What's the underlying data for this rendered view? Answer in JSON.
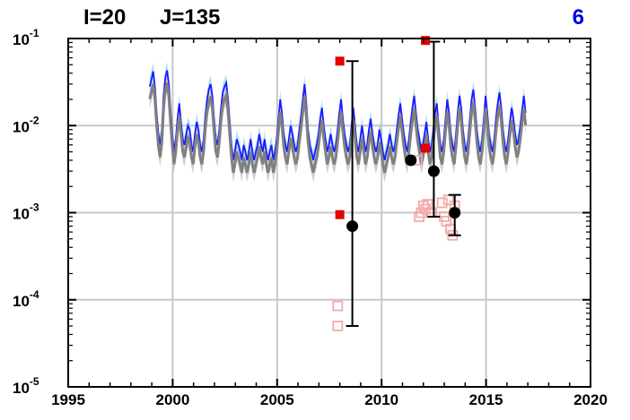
{
  "chart_data": {
    "type": "line",
    "title_left": "I=20",
    "title_mid": "J=135",
    "title_right": "6",
    "xlim": [
      1995,
      2020
    ],
    "ylim": [
      1e-05,
      0.1
    ],
    "yscale": "log",
    "grid": true,
    "x_ticks": [
      "1995",
      "2000",
      "2005",
      "2010",
      "2015",
      "2020"
    ],
    "y_ticks": [
      {
        "base": "10",
        "exp": "-5",
        "value": 1e-05
      },
      {
        "base": "10",
        "exp": "-4",
        "value": 0.0001
      },
      {
        "base": "10",
        "exp": "-3",
        "value": 0.001
      },
      {
        "base": "10",
        "exp": "-2",
        "value": 0.01
      },
      {
        "base": "10",
        "exp": "-1",
        "value": 0.1
      }
    ],
    "colors": {
      "blue_line": "#1a1aff",
      "light_band": "#9ad7f5",
      "gray_line": "#808080",
      "red_square": "#e60000",
      "pink_square": "#f4aaaa",
      "black_dot": "#000000",
      "grid": "#c8c8c8",
      "title_right": "#0000e0"
    },
    "series_monthly_x_start": 1998.9,
    "series_monthly_x_step": 0.0833,
    "series_blue": [
      0.028,
      0.034,
      0.042,
      0.028,
      0.014,
      0.008,
      0.006,
      0.009,
      0.022,
      0.036,
      0.043,
      0.03,
      0.015,
      0.008,
      0.005,
      0.007,
      0.012,
      0.018,
      0.011,
      0.007,
      0.006,
      0.008,
      0.01,
      0.009,
      0.006,
      0.005,
      0.008,
      0.011,
      0.009,
      0.006,
      0.005,
      0.007,
      0.013,
      0.02,
      0.026,
      0.03,
      0.022,
      0.012,
      0.007,
      0.006,
      0.009,
      0.016,
      0.024,
      0.028,
      0.031,
      0.02,
      0.011,
      0.006,
      0.004,
      0.005,
      0.007,
      0.006,
      0.005,
      0.004,
      0.006,
      0.005,
      0.004,
      0.005,
      0.007,
      0.005,
      0.004,
      0.005,
      0.006,
      0.008,
      0.006,
      0.005,
      0.007,
      0.005,
      0.004,
      0.005,
      0.006,
      0.004,
      0.005,
      0.007,
      0.012,
      0.02,
      0.014,
      0.008,
      0.006,
      0.005,
      0.007,
      0.01,
      0.008,
      0.006,
      0.005,
      0.006,
      0.009,
      0.013,
      0.02,
      0.03,
      0.018,
      0.009,
      0.006,
      0.005,
      0.004,
      0.005,
      0.006,
      0.008,
      0.012,
      0.016,
      0.01,
      0.007,
      0.005,
      0.006,
      0.008,
      0.006,
      0.005,
      0.006,
      0.009,
      0.014,
      0.02,
      0.012,
      0.008,
      0.006,
      0.005,
      0.006,
      0.01,
      0.016,
      0.01,
      0.006,
      0.005,
      0.007,
      0.01,
      0.007,
      0.005,
      0.006,
      0.009,
      0.012,
      0.008,
      0.006,
      0.005,
      0.006,
      0.009,
      0.007,
      0.005,
      0.004,
      0.005,
      0.006,
      0.008,
      0.006,
      0.005,
      0.006,
      0.009,
      0.013,
      0.018,
      0.012,
      0.008,
      0.006,
      0.005,
      0.007,
      0.011,
      0.016,
      0.022,
      0.014,
      0.009,
      0.007,
      0.005,
      0.006,
      0.008,
      0.011,
      0.007,
      0.005,
      0.006,
      0.009,
      0.014,
      0.018,
      0.01,
      0.006,
      0.005,
      0.007,
      0.012,
      0.02,
      0.014,
      0.008,
      0.006,
      0.005,
      0.008,
      0.014,
      0.022,
      0.016,
      0.009,
      0.006,
      0.005,
      0.007,
      0.012,
      0.02,
      0.026,
      0.016,
      0.009,
      0.006,
      0.005,
      0.007,
      0.012,
      0.022,
      0.014,
      0.008,
      0.006,
      0.005,
      0.007,
      0.012,
      0.018,
      0.024,
      0.016,
      0.009,
      0.006,
      0.005,
      0.007,
      0.011,
      0.016,
      0.012,
      0.008,
      0.006,
      0.007,
      0.01,
      0.015,
      0.022,
      0.014
    ],
    "gray_ratio": 0.72,
    "red_squares": [
      {
        "x": 2008.0,
        "y": 0.055
      },
      {
        "x": 2008.0,
        "y": 0.00095
      },
      {
        "x": 2012.1,
        "y": 0.095
      },
      {
        "x": 2012.1,
        "y": 0.0055
      }
    ],
    "pink_squares": [
      {
        "x": 2007.9,
        "y": 8.5e-05
      },
      {
        "x": 2007.9,
        "y": 5e-05
      },
      {
        "x": 2011.7,
        "y": 0.004
      },
      {
        "x": 2011.8,
        "y": 0.0009
      },
      {
        "x": 2011.9,
        "y": 0.001
      },
      {
        "x": 2012.0,
        "y": 0.0012
      },
      {
        "x": 2012.1,
        "y": 0.0011
      },
      {
        "x": 2012.2,
        "y": 0.00125
      },
      {
        "x": 2012.4,
        "y": 0.001
      },
      {
        "x": 2012.9,
        "y": 0.0013
      },
      {
        "x": 2013.0,
        "y": 0.0009
      },
      {
        "x": 2013.1,
        "y": 0.0008
      },
      {
        "x": 2013.2,
        "y": 0.0014
      },
      {
        "x": 2013.3,
        "y": 0.00065
      },
      {
        "x": 2013.4,
        "y": 0.00055
      },
      {
        "x": 2013.5,
        "y": 0.0012
      }
    ],
    "black_points": [
      {
        "x": 2008.6,
        "y": 0.0007,
        "lo": 5e-05,
        "hi": 0.055
      },
      {
        "x": 2011.4,
        "y": 0.004
      },
      {
        "x": 2012.5,
        "y": 0.003,
        "lo": 0.0009,
        "hi": 0.092
      },
      {
        "x": 2013.5,
        "y": 0.001,
        "lo": 0.00055,
        "hi": 0.0016
      }
    ]
  }
}
